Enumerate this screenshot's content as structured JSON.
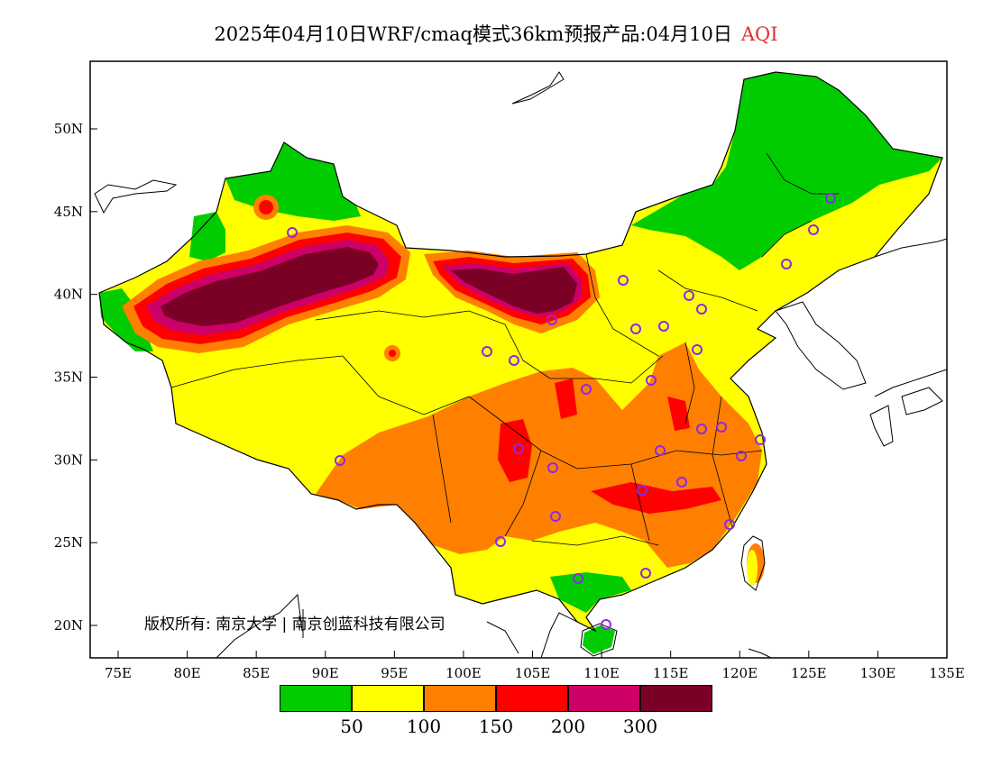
{
  "header": {
    "title": "2025年04月10日WRF/cmaq模式36km预报产品:04月10日",
    "variable": "AQI",
    "variable_color": "#e0302f"
  },
  "map": {
    "lon_ticks": [
      "75E",
      "80E",
      "85E",
      "90E",
      "95E",
      "100E",
      "105E",
      "110E",
      "115E",
      "120E",
      "125E",
      "130E",
      "135E"
    ],
    "lat_ticks": [
      "20N",
      "25N",
      "30N",
      "35N",
      "40N",
      "45N",
      "50N"
    ],
    "copyright": "版权所有: 南京大学 | 南京创蓝科技有限公司"
  },
  "legend": {
    "colors": [
      "#00cc00",
      "#ffff00",
      "#ff8000",
      "#ff0000",
      "#cc0066",
      "#7a0026"
    ],
    "labels": [
      "50",
      "100",
      "150",
      "200",
      "300"
    ]
  }
}
